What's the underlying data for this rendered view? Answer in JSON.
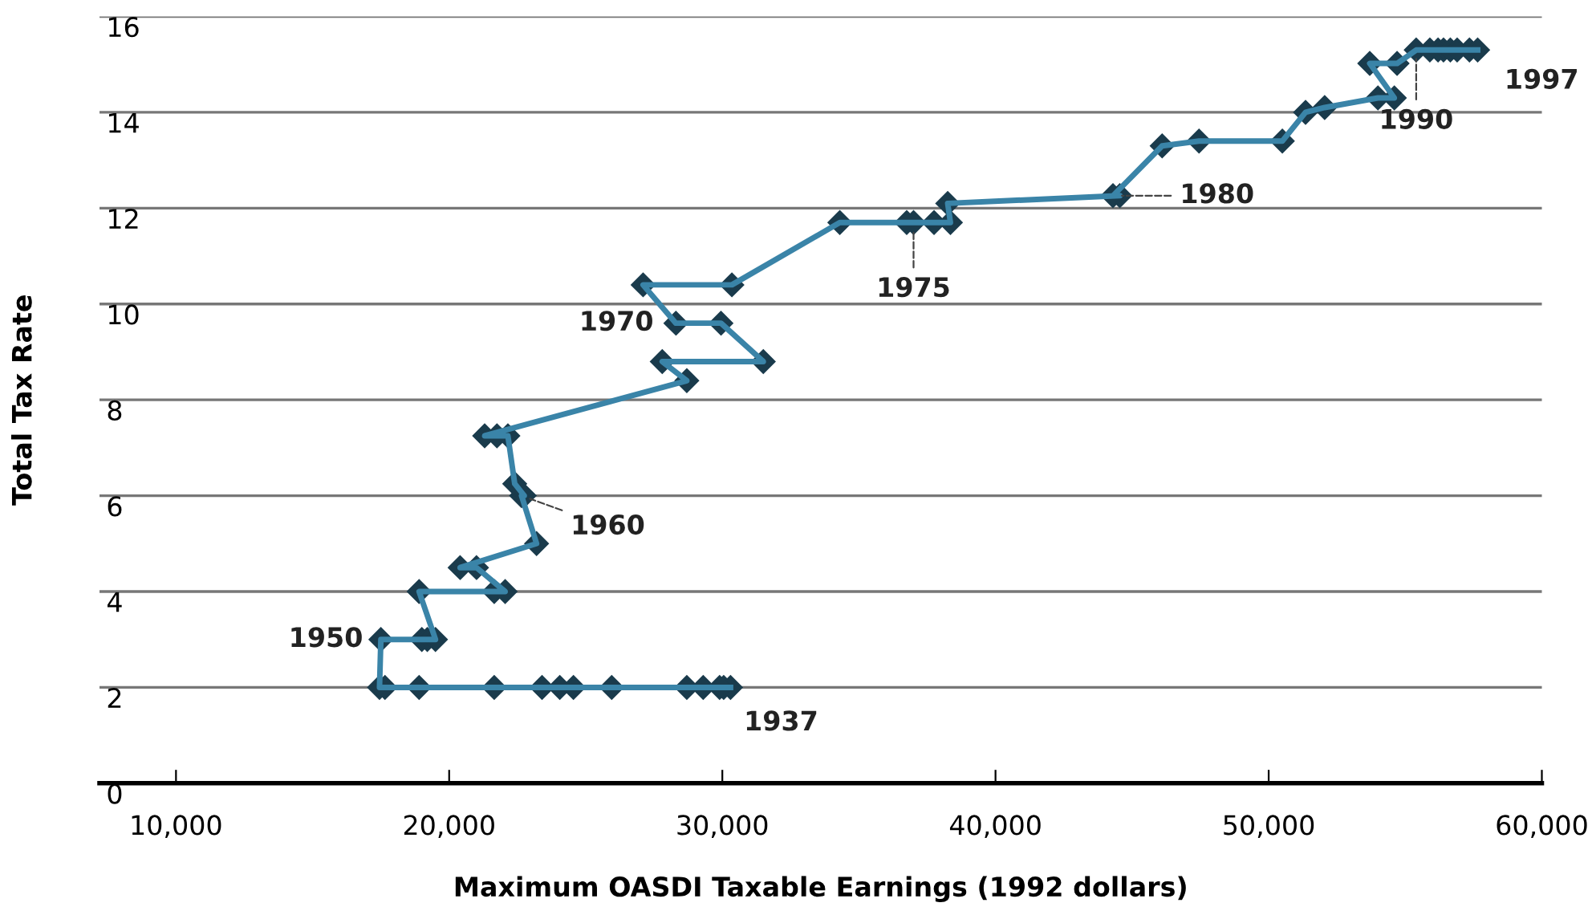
{
  "chart_data": {
    "type": "line",
    "xlabel": "Maximum OASDI Taxable Earnings (1992 dollars)",
    "ylabel": "Total Tax Rate",
    "xlim": [
      7200,
      60000
    ],
    "xticks": [
      {
        "value": 10000,
        "label": "10,000"
      },
      {
        "value": 20000,
        "label": "20,000"
      },
      {
        "value": 30000,
        "label": "30,000"
      },
      {
        "value": 40000,
        "label": "40,000"
      },
      {
        "value": 50000,
        "label": "50,000"
      },
      {
        "value": 60000,
        "label": "60,000"
      }
    ],
    "ylim": [
      0,
      16
    ],
    "yticks": [
      0,
      2,
      4,
      6,
      8,
      10,
      12,
      14,
      16
    ],
    "grid": "y",
    "marker": "diamond",
    "line_style": "solid",
    "series": [
      {
        "color": "#3a84a8",
        "x": [
          30300,
          30050,
          29900,
          29300,
          28700,
          25950,
          24550,
          24050,
          23400,
          21650,
          18900,
          17650,
          17450,
          17500,
          19000,
          19200,
          19500,
          18900,
          21650,
          22050,
          21000,
          20400,
          23200,
          22650,
          22750,
          22400,
          22150,
          21750,
          21300,
          28700,
          27800,
          31500,
          29950,
          28300,
          27100,
          30350,
          34300,
          36750,
          37000,
          37750,
          38350,
          38250,
          44550,
          44300,
          46100,
          47450,
          50500,
          51350,
          52050,
          54000,
          54600,
          53700,
          54700,
          55400,
          55900,
          56200,
          56400,
          56650,
          56900,
          57350,
          57650
        ],
        "values": [
          2,
          2,
          2,
          2,
          2,
          2,
          2,
          2,
          2,
          2,
          2,
          2,
          2,
          3,
          3,
          3,
          3,
          4,
          4,
          4,
          4.5,
          4.5,
          5,
          6,
          6,
          6.25,
          7.25,
          7.25,
          7.25,
          8.4,
          8.8,
          8.8,
          9.6,
          9.6,
          10.4,
          10.4,
          11.7,
          11.7,
          11.7,
          11.7,
          11.7,
          12.1,
          12.26,
          12.26,
          13.3,
          13.4,
          13.4,
          14,
          14.1,
          14.3,
          14.3,
          15.02,
          15.02,
          15.3,
          15.3,
          15.3,
          15.3,
          15.3,
          15.3,
          15.3,
          15.3
        ]
      }
    ],
    "annotations": [
      {
        "text": "1937",
        "x": 30300,
        "y": 2
      },
      {
        "text": "1950",
        "x": 17500,
        "y": 3
      },
      {
        "text": "1960",
        "x": 22650,
        "y": 6
      },
      {
        "text": "1970",
        "x": 28300,
        "y": 9.6
      },
      {
        "text": "1975",
        "x": 37000,
        "y": 11.7
      },
      {
        "text": "1980",
        "x": 44300,
        "y": 12.26
      },
      {
        "text": "1990",
        "x": 55400,
        "y": 15.3
      },
      {
        "text": "1997",
        "x": 57650,
        "y": 15.3
      }
    ]
  }
}
